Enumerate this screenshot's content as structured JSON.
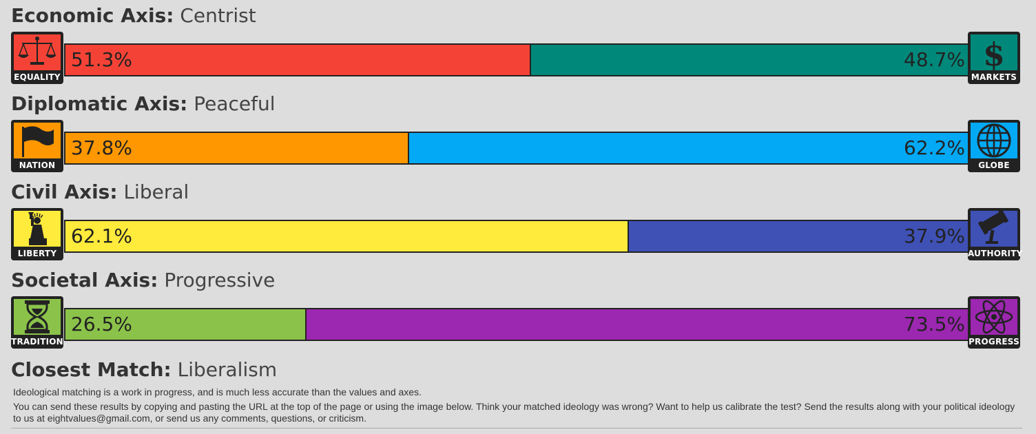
{
  "axes": [
    {
      "label": "Economic Axis:",
      "value": "Centrist",
      "left": {
        "name": "EQUALITY",
        "percent": "51.3%",
        "pct": 51.3,
        "color": "#f44336",
        "icon": "scales-icon"
      },
      "right": {
        "name": "MARKETS",
        "percent": "48.7%",
        "pct": 48.7,
        "color": "#00897b",
        "icon": "dollar-icon"
      }
    },
    {
      "label": "Diplomatic Axis:",
      "value": "Peaceful",
      "left": {
        "name": "NATION",
        "percent": "37.8%",
        "pct": 37.8,
        "color": "#ff9800",
        "icon": "flag-icon"
      },
      "right": {
        "name": "GLOBE",
        "percent": "62.2%",
        "pct": 62.2,
        "color": "#03a9f4",
        "icon": "globe-icon"
      }
    },
    {
      "label": "Civil Axis:",
      "value": "Liberal",
      "left": {
        "name": "LIBERTY",
        "percent": "62.1%",
        "pct": 62.1,
        "color": "#ffeb3b",
        "icon": "statue-of-liberty-icon"
      },
      "right": {
        "name": "AUTHORITY",
        "percent": "37.9%",
        "pct": 37.9,
        "color": "#3f51b5",
        "icon": "gavel-icon"
      }
    },
    {
      "label": "Societal Axis:",
      "value": "Progressive",
      "left": {
        "name": "TRADITION",
        "percent": "26.5%",
        "pct": 26.5,
        "color": "#8bc34a",
        "icon": "hourglass-icon"
      },
      "right": {
        "name": "PROGRESS",
        "percent": "73.5%",
        "pct": 73.5,
        "color": "#9c27b0",
        "icon": "atom-icon"
      }
    }
  ],
  "match": {
    "label": "Closest Match:",
    "value": "Liberalism"
  },
  "notes": [
    "Ideological matching is a work in progress, and is much less accurate than the values and axes.",
    "You can send these results by copying and pasting the URL at the top of the page or using the image below. Think your matched ideology was wrong? Want to help us calibrate the test? Send the results along with your political ideology to us at eightvalues@gmail.com, or send us any comments, questions, or criticism."
  ]
}
